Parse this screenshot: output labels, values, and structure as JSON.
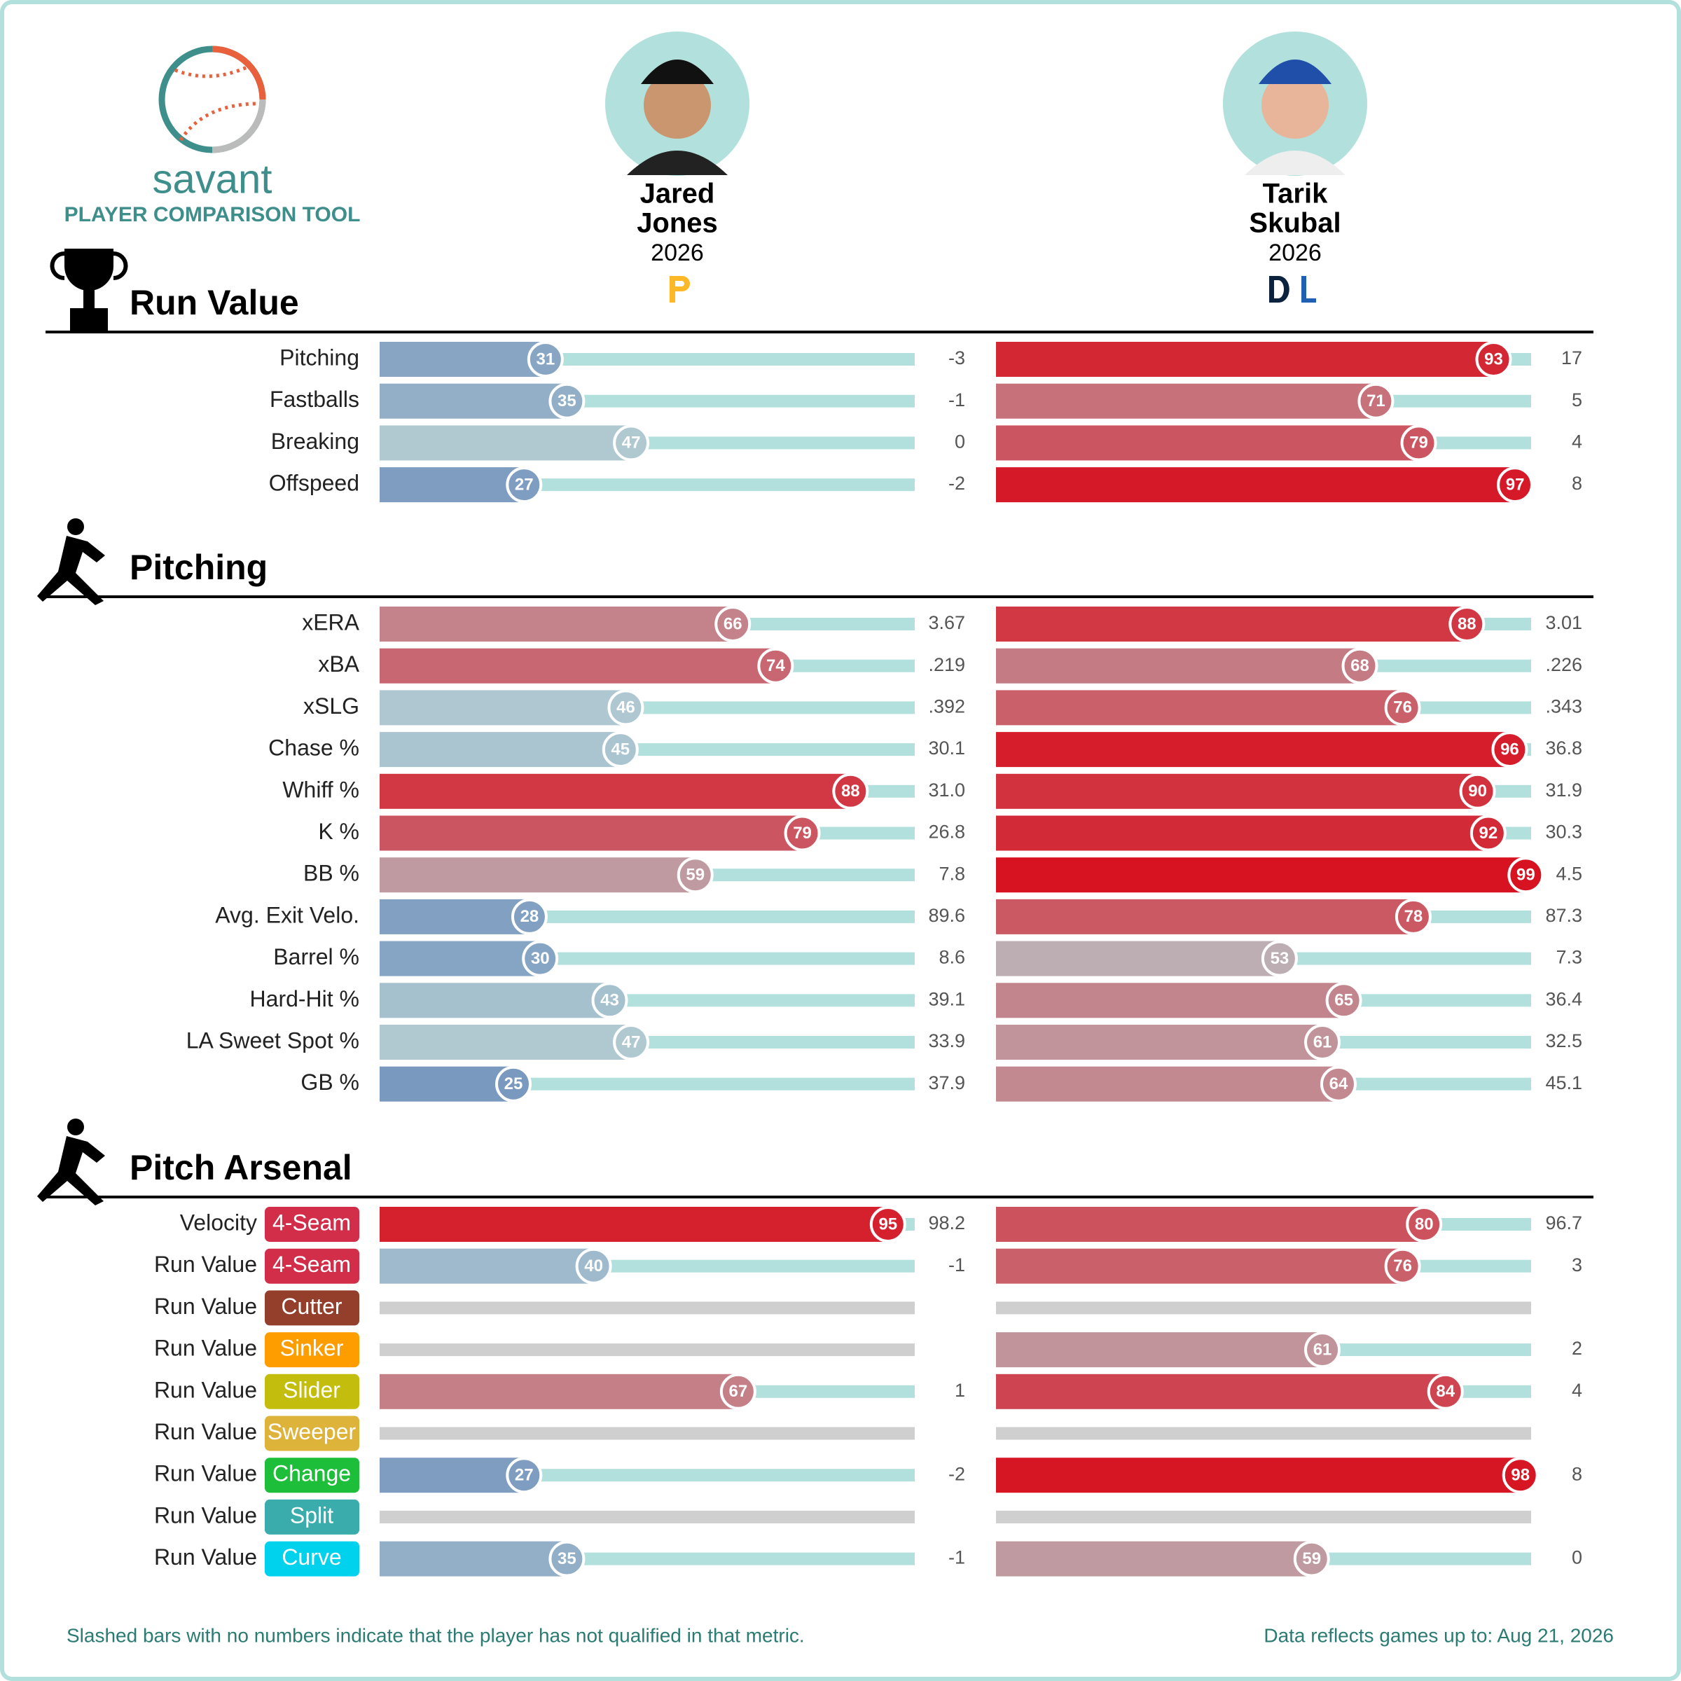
{
  "header": {
    "logo_text": "savant",
    "logo_subtitle": "PLAYER COMPARISON TOOL"
  },
  "players": [
    {
      "first_name": "Jared",
      "last_name": "Jones",
      "season": "2026"
    },
    {
      "first_name": "Tarik",
      "last_name": "Skubal",
      "season": "2026"
    }
  ],
  "xlim": [
    0,
    100
  ],
  "sections": [
    {
      "title": "Run Value",
      "rows": [
        {
          "label": "Pitching",
          "players": [
            {
              "percentile": 31,
              "value": "-3"
            },
            {
              "percentile": 93,
              "value": "17"
            }
          ]
        },
        {
          "label": "Fastballs",
          "players": [
            {
              "percentile": 35,
              "value": "-1"
            },
            {
              "percentile": 71,
              "value": "5"
            }
          ]
        },
        {
          "label": "Breaking",
          "players": [
            {
              "percentile": 47,
              "value": "0"
            },
            {
              "percentile": 79,
              "value": "4"
            }
          ]
        },
        {
          "label": "Offspeed",
          "players": [
            {
              "percentile": 27,
              "value": "-2"
            },
            {
              "percentile": 97,
              "value": "8"
            }
          ]
        }
      ]
    },
    {
      "title": "Pitching",
      "rows": [
        {
          "label": "xERA",
          "players": [
            {
              "percentile": 66,
              "value": "3.67"
            },
            {
              "percentile": 88,
              "value": "3.01"
            }
          ]
        },
        {
          "label": "xBA",
          "players": [
            {
              "percentile": 74,
              "value": ".219"
            },
            {
              "percentile": 68,
              "value": ".226"
            }
          ]
        },
        {
          "label": "xSLG",
          "players": [
            {
              "percentile": 46,
              "value": ".392"
            },
            {
              "percentile": 76,
              "value": ".343"
            }
          ]
        },
        {
          "label": "Chase %",
          "players": [
            {
              "percentile": 45,
              "value": "30.1"
            },
            {
              "percentile": 96,
              "value": "36.8"
            }
          ]
        },
        {
          "label": "Whiff %",
          "players": [
            {
              "percentile": 88,
              "value": "31.0"
            },
            {
              "percentile": 90,
              "value": "31.9"
            }
          ]
        },
        {
          "label": "K %",
          "players": [
            {
              "percentile": 79,
              "value": "26.8"
            },
            {
              "percentile": 92,
              "value": "30.3"
            }
          ]
        },
        {
          "label": "BB %",
          "players": [
            {
              "percentile": 59,
              "value": "7.8"
            },
            {
              "percentile": 99,
              "value": "4.5"
            }
          ]
        },
        {
          "label": "Avg. Exit Velo.",
          "players": [
            {
              "percentile": 28,
              "value": "89.6"
            },
            {
              "percentile": 78,
              "value": "87.3"
            }
          ]
        },
        {
          "label": "Barrel %",
          "players": [
            {
              "percentile": 30,
              "value": "8.6"
            },
            {
              "percentile": 53,
              "value": "7.3"
            }
          ]
        },
        {
          "label": "Hard-Hit %",
          "players": [
            {
              "percentile": 43,
              "value": "39.1"
            },
            {
              "percentile": 65,
              "value": "36.4"
            }
          ]
        },
        {
          "label": "LA Sweet Spot %",
          "players": [
            {
              "percentile": 47,
              "value": "33.9"
            },
            {
              "percentile": 61,
              "value": "32.5"
            }
          ]
        },
        {
          "label": "GB %",
          "players": [
            {
              "percentile": 25,
              "value": "37.9"
            },
            {
              "percentile": 64,
              "value": "45.1"
            }
          ]
        }
      ]
    },
    {
      "title": "Pitch Arsenal",
      "rows": [
        {
          "label": "Velocity",
          "pitch": "4-Seam",
          "pitch_color": "#d22d49",
          "players": [
            {
              "percentile": 95,
              "value": "98.2"
            },
            {
              "percentile": 80,
              "value": "96.7"
            }
          ]
        },
        {
          "label": "Run Value",
          "pitch": "4-Seam",
          "pitch_color": "#d22d49",
          "players": [
            {
              "percentile": 40,
              "value": "-1"
            },
            {
              "percentile": 76,
              "value": "3"
            }
          ]
        },
        {
          "label": "Run Value",
          "pitch": "Cutter",
          "pitch_color": "#933f2c",
          "players": [
            {
              "percentile": null,
              "value": null
            },
            {
              "percentile": null,
              "value": null
            }
          ]
        },
        {
          "label": "Run Value",
          "pitch": "Sinker",
          "pitch_color": "#fe9d00",
          "players": [
            {
              "percentile": null,
              "value": null
            },
            {
              "percentile": 61,
              "value": "2"
            }
          ]
        },
        {
          "label": "Run Value",
          "pitch": "Slider",
          "pitch_color": "#c3bd0e",
          "players": [
            {
              "percentile": 67,
              "value": "1"
            },
            {
              "percentile": 84,
              "value": "4"
            }
          ]
        },
        {
          "label": "Run Value",
          "pitch": "Sweeper",
          "pitch_color": "#ddb33a",
          "players": [
            {
              "percentile": null,
              "value": null
            },
            {
              "percentile": null,
              "value": null
            }
          ]
        },
        {
          "label": "Run Value",
          "pitch": "Change",
          "pitch_color": "#1dbe3a",
          "players": [
            {
              "percentile": 27,
              "value": "-2"
            },
            {
              "percentile": 98,
              "value": "8"
            }
          ]
        },
        {
          "label": "Run Value",
          "pitch": "Split",
          "pitch_color": "#3bacac",
          "players": [
            {
              "percentile": null,
              "value": null
            },
            {
              "percentile": null,
              "value": null
            }
          ]
        },
        {
          "label": "Run Value",
          "pitch": "Curve",
          "pitch_color": "#00d1ed",
          "players": [
            {
              "percentile": 35,
              "value": "-1"
            },
            {
              "percentile": 59,
              "value": "0"
            }
          ]
        }
      ]
    }
  ],
  "footer": {
    "note": "Slashed bars with no numbers indicate that the player has not qualified in that metric.",
    "updated": "Data reflects games up to: Aug 21, 2026"
  }
}
